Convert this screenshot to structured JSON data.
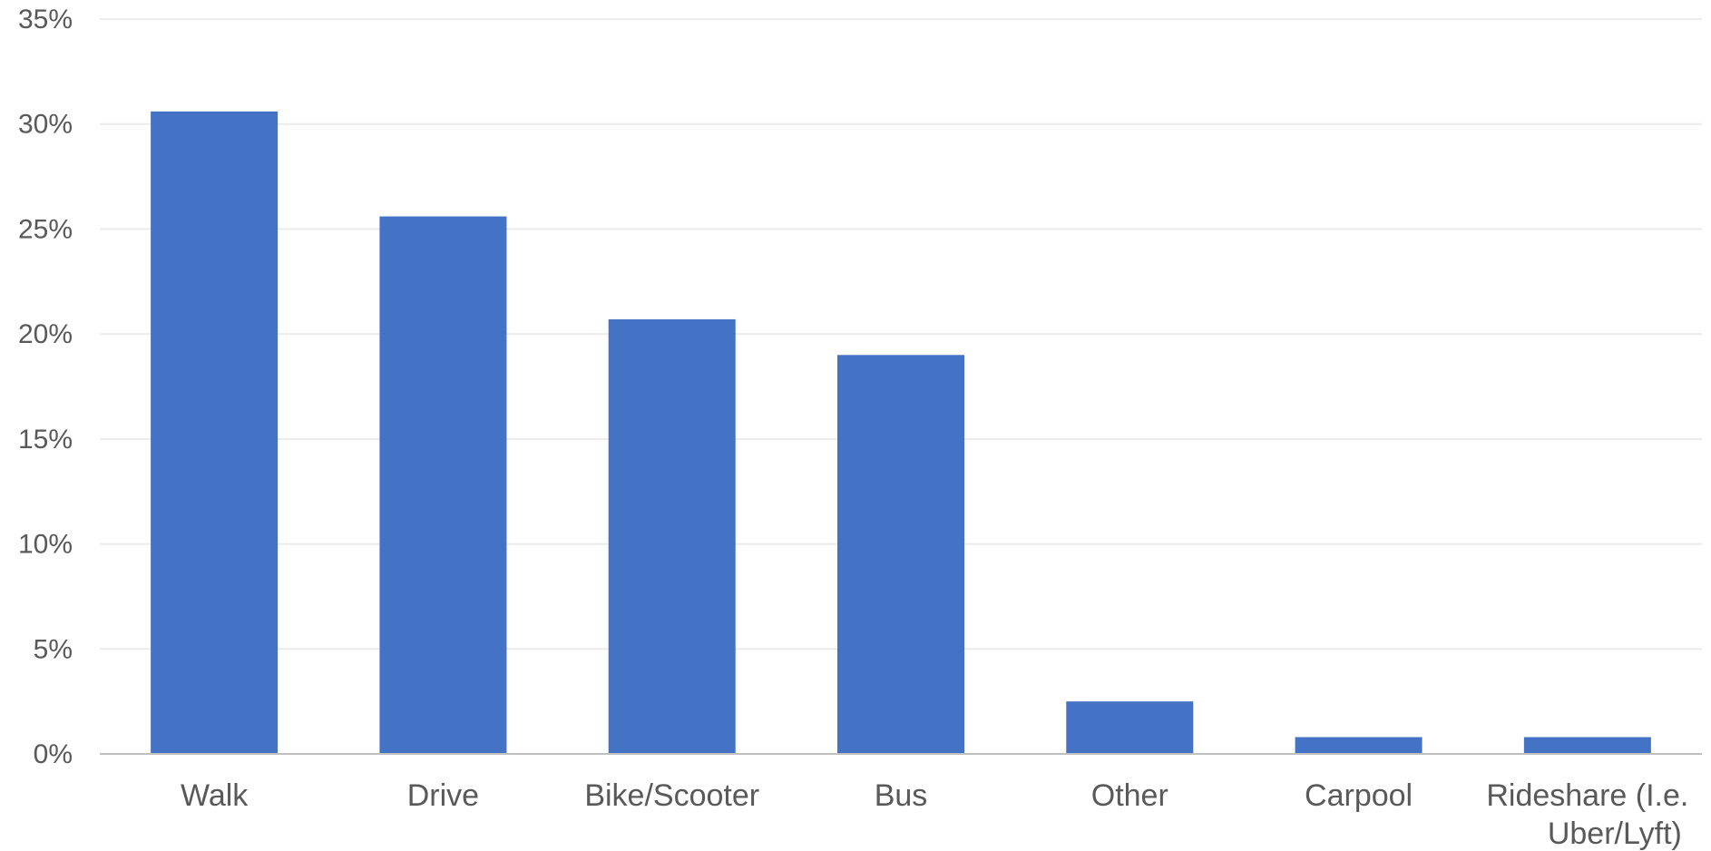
{
  "chart_data": {
    "type": "bar",
    "title": "",
    "xlabel": "",
    "ylabel": "",
    "categories": [
      [
        "Walk"
      ],
      [
        "Drive"
      ],
      [
        "Bike/Scooter"
      ],
      [
        "Bus"
      ],
      [
        "Other"
      ],
      [
        "Carpool"
      ],
      [
        "Rideshare (I.e.",
        "Uber/Lyft)"
      ]
    ],
    "values": [
      30.6,
      25.6,
      20.7,
      19.0,
      2.5,
      0.8,
      0.8
    ],
    "unit": "%",
    "ylim": [
      0,
      35
    ],
    "yticks": [
      0,
      5,
      10,
      15,
      20,
      25,
      30,
      35
    ],
    "ytick_labels": [
      "0%",
      "5%",
      "10%",
      "15%",
      "20%",
      "25%",
      "30%",
      "35%"
    ],
    "grid": true,
    "legend": "none",
    "bar_color": "#4472c4"
  }
}
